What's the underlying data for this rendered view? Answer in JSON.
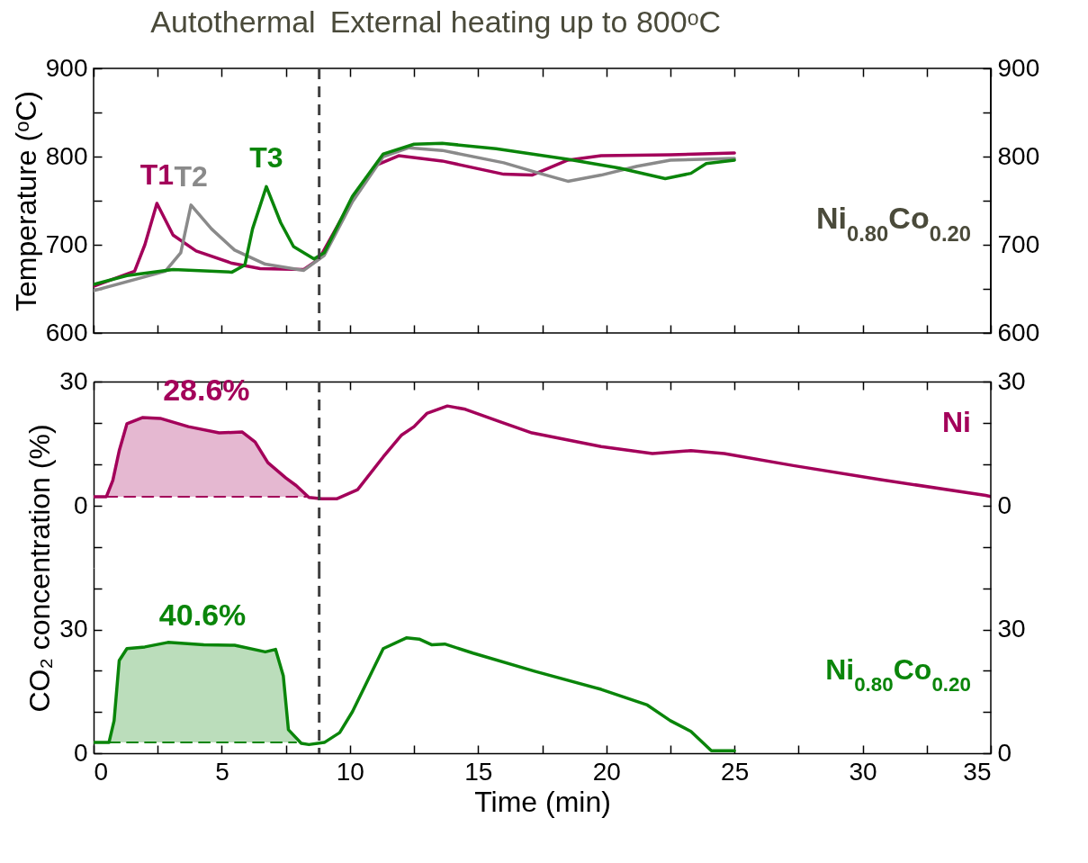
{
  "chart_data": [
    {
      "type": "line",
      "title": "Ni$_{0.80}$Co$_{0.20}$",
      "ylabel": "Temperature (ᵒC)",
      "annotations": [
        "Autothermal",
        "External heating up to 800ᵒC"
      ],
      "xlim": [
        0,
        35
      ],
      "xticks": [
        0,
        {
          "value": 2.5,
          "label": null
        },
        5,
        {
          "value": 7.5,
          "label": null
        },
        10,
        {
          "value": 12.5,
          "label": null
        },
        15,
        {
          "value": 17.5,
          "label": null
        },
        20,
        {
          "value": 22.5,
          "label": null
        },
        25,
        {
          "value": 27.5,
          "label": null
        },
        30,
        {
          "value": 32.5,
          "label": null
        },
        35
      ],
      "ylim": [
        600,
        900
      ],
      "yticks": [
        600,
        {
          "value": 650,
          "label": null
        },
        700,
        {
          "value": 750,
          "label": null
        },
        800,
        {
          "value": 850,
          "label": null
        },
        900
      ],
      "y2lim": [
        600,
        900
      ],
      "y2ticks": [
        600,
        {
          "value": 650,
          "label": null
        },
        700,
        {
          "value": 750,
          "label": null
        },
        800,
        {
          "value": 850,
          "label": null
        },
        900
      ],
      "tick_labels": "y",
      "ref_lines": [
        {
          "axis": "x",
          "value": 8.8,
          "line_style": "dashed",
          "color": "#404040"
        }
      ],
      "series": [
        {
          "name": "T1",
          "color": "#a3005a",
          "x": [
            0,
            1.6,
            2.0,
            2.47,
            3.1,
            4.0,
            5.4,
            6.5,
            8.2,
            8.8,
            10.1,
            11.0,
            11.9,
            13.6,
            16.0,
            17.1,
            18.5,
            19.8,
            22.5,
            25
          ],
          "values": [
            653,
            670,
            700,
            747,
            711,
            693,
            679,
            673,
            672,
            684,
            752,
            790,
            801,
            795,
            780,
            779,
            796,
            801,
            802,
            804
          ]
        },
        {
          "name": "T2",
          "color": "#8a8a8a",
          "x": [
            0,
            2.8,
            3.4,
            3.8,
            4.6,
            5.5,
            6.7,
            8.2,
            9.0,
            10.1,
            11.3,
            12.3,
            13.6,
            16.0,
            17.4,
            18.5,
            19.8,
            21.2,
            22.5,
            25
          ],
          "values": [
            648,
            670,
            691,
            745,
            718,
            694,
            678,
            671,
            688,
            749,
            800,
            810,
            807,
            793,
            781,
            772,
            779,
            789,
            796,
            798
          ]
        },
        {
          "name": "T3",
          "color": "#0a850a",
          "x": [
            0,
            1.3,
            3.1,
            5.4,
            5.9,
            6.2,
            6.74,
            7.3,
            7.8,
            8.6,
            9.0,
            10.1,
            11.3,
            12.5,
            13.6,
            15.7,
            18.5,
            20.5,
            22.3,
            23.3,
            23.9,
            25
          ],
          "values": [
            655,
            665,
            672,
            669,
            677,
            718,
            766,
            725,
            698,
            684,
            691,
            755,
            803,
            814,
            815,
            809,
            797,
            787,
            775,
            781,
            792,
            796
          ]
        }
      ]
    },
    {
      "type": "line",
      "ylabel": "CO₂ concentration (%)",
      "annotations": [
        "28.6%"
      ],
      "xlim": [
        0,
        35
      ],
      "xticks": [
        0,
        {
          "value": 2.5,
          "label": null
        },
        5,
        {
          "value": 7.5,
          "label": null
        },
        10,
        {
          "value": 12.5,
          "label": null
        },
        15,
        {
          "value": 17.5,
          "label": null
        },
        20,
        {
          "value": 22.5,
          "label": null
        },
        25,
        {
          "value": 27.5,
          "label": null
        },
        30,
        {
          "value": 32.5,
          "label": null
        },
        35
      ],
      "ylim": [
        -15,
        30
      ],
      "yticks": [
        {
          "value": -10,
          "label": null
        },
        0,
        {
          "value": 10,
          "label": null
        },
        {
          "value": 20,
          "label": null
        },
        30
      ],
      "y2lim": [
        -15,
        30
      ],
      "y2ticks": [
        {
          "value": -10,
          "label": null
        },
        0,
        {
          "value": 10,
          "label": null
        },
        {
          "value": 20,
          "label": null
        },
        30
      ],
      "tick_labels": "y",
      "ref_lines": [
        {
          "axis": "x",
          "value": 8.8,
          "line_style": "dashed",
          "color": "#404040"
        }
      ],
      "series": [
        {
          "type": "area",
          "color": "#a3005a",
          "x": [
            0.5,
            0.75,
            1.0,
            1.3,
            1.9,
            2.6,
            3.7,
            4.9,
            5.8,
            6.3,
            6.8,
            7.5,
            7.9,
            8.3
          ],
          "values": [
            2.2,
            6.1,
            13.3,
            19.8,
            21.3,
            21.1,
            19.1,
            17.6,
            17.8,
            15.4,
            10.4,
            6.7,
            4.9,
            2.3
          ]
        },
        {
          "name": "Ni",
          "color": "#a3005a",
          "x": [
            0,
            0.5,
            0.75,
            1.0,
            1.3,
            1.9,
            2.6,
            3.7,
            4.9,
            5.8,
            6.3,
            6.8,
            7.5,
            7.9,
            8.4,
            8.9,
            9.5,
            10.3,
            11.3,
            12.0,
            12.5,
            13.0,
            13.8,
            14.5,
            15.9,
            17.1,
            19.8,
            21.8,
            23.3,
            24.6,
            27.3,
            30.7,
            34.8,
            35
          ],
          "values": [
            2.2,
            2.2,
            6.1,
            13.3,
            19.8,
            21.3,
            21.1,
            19.1,
            17.6,
            17.8,
            15.4,
            10.4,
            6.7,
            4.9,
            2.0,
            1.7,
            1.7,
            3.9,
            11.8,
            17.0,
            19.1,
            22.3,
            24.1,
            23.3,
            20.2,
            17.6,
            14.3,
            12.6,
            13.3,
            12.6,
            9.7,
            6.3,
            2.5,
            2.2
          ]
        },
        {
          "type": "line",
          "color": "#a3005a",
          "line_style": "dashed",
          "x": [
            0.5,
            1.5,
            2.5,
            3.5,
            4.5,
            5.5,
            6.5,
            7.5,
            8.3
          ],
          "values": [
            2.2,
            2.2,
            2.2,
            2.2,
            2.2,
            2.2,
            2.2,
            2.2,
            2.2
          ]
        }
      ]
    },
    {
      "type": "line",
      "xlabel": "Time (min)",
      "annotations": [
        "40.6%"
      ],
      "xlim": [
        0,
        35
      ],
      "xticks": [
        0,
        {
          "value": 2.5,
          "label": null
        },
        5,
        {
          "value": 7.5,
          "label": null
        },
        10,
        {
          "value": 12.5,
          "label": null
        },
        15,
        {
          "value": 17.5,
          "label": null
        },
        20,
        {
          "value": 22.5,
          "label": null
        },
        25,
        {
          "value": 27.5,
          "label": null
        },
        30,
        {
          "value": 32.5,
          "label": null
        },
        35
      ],
      "ylim": [
        0,
        45
      ],
      "yticks": [
        0,
        {
          "value": 10,
          "label": null
        },
        {
          "value": 20,
          "label": null
        },
        30,
        {
          "value": 40,
          "label": null
        }
      ],
      "y2lim": [
        0,
        45
      ],
      "y2ticks": [
        0,
        {
          "value": 10,
          "label": null
        },
        {
          "value": 20,
          "label": null
        },
        30,
        {
          "value": 40,
          "label": null
        }
      ],
      "ref_lines": [
        {
          "axis": "x",
          "value": 8.8,
          "line_style": "dashed",
          "color": "#404040"
        }
      ],
      "series": [
        {
          "type": "area",
          "color": "#0a850a",
          "x": [
            0.6,
            0.8,
            1.0,
            1.3,
            2.0,
            2.9,
            4.3,
            5.5,
            6.7,
            7.1,
            7.4,
            7.6,
            7.9
          ],
          "values": [
            2.6,
            7.9,
            22.5,
            25.4,
            25.8,
            26.9,
            26.3,
            26.2,
            24.6,
            25.2,
            18.8,
            5.7,
            3.0
          ]
        },
        {
          "name": "Ni$_{0.80}$Co$_{0.20}$",
          "color": "#0a850a",
          "x": [
            0,
            0.6,
            0.8,
            1.0,
            1.3,
            2.0,
            2.9,
            4.3,
            5.5,
            6.7,
            7.1,
            7.4,
            7.6,
            8.1,
            8.4,
            9.0,
            9.6,
            10.1,
            10.9,
            11.3,
            12.2,
            12.7,
            13.2,
            13.7,
            14.8,
            17.2,
            19.8,
            21.6,
            22.5,
            23.3,
            24.1,
            25
          ],
          "values": [
            2.6,
            2.6,
            7.9,
            22.5,
            25.4,
            25.8,
            26.9,
            26.3,
            26.2,
            24.6,
            25.2,
            18.8,
            5.7,
            2.4,
            2.1,
            2.6,
            5.0,
            10.1,
            20.3,
            25.4,
            28.0,
            27.7,
            26.3,
            26.5,
            24.3,
            19.9,
            15.5,
            11.7,
            7.9,
            5.3,
            0.6,
            0.6
          ]
        },
        {
          "type": "line",
          "color": "#0a850a",
          "line_style": "dashed",
          "x": [
            0.6,
            1.5,
            2.5,
            3.5,
            4.5,
            5.5,
            6.5,
            7.5,
            7.9
          ],
          "values": [
            2.6,
            2.6,
            2.6,
            2.6,
            2.6,
            2.6,
            2.6,
            2.6,
            2.6
          ]
        }
      ]
    }
  ]
}
